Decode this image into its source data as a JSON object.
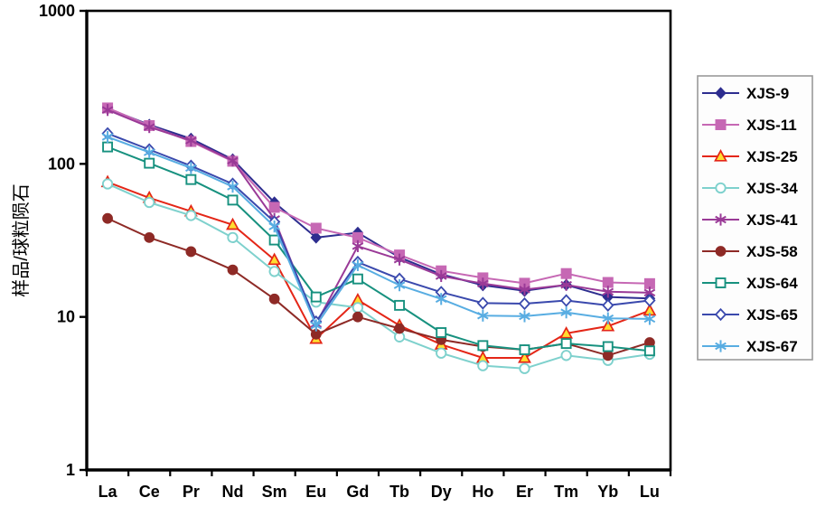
{
  "chart_data": {
    "type": "line",
    "title": "",
    "ylabel": "样品/球粒陨石",
    "xlabel": "",
    "y_scale": "log",
    "ylim": [
      1,
      1000
    ],
    "y_ticks": [
      1000,
      100,
      10,
      1
    ],
    "y_tick_labels": [
      "1000",
      "100",
      "10",
      "1"
    ],
    "grid": "off",
    "legend_position": "right-outside",
    "x_categories": [
      "La",
      "Ce",
      "Pr",
      "Nd",
      "Sm",
      "Eu",
      "Gd",
      "Tb",
      "Dy",
      "Ho",
      "Er",
      "Tm",
      "Yb",
      "Lu"
    ],
    "series": [
      {
        "name": "XJS-9",
        "color": "#2d2d8f",
        "marker": "diamond-filled",
        "values": [
          230,
          180,
          146,
          107,
          56,
          33,
          35.5,
          24.5,
          19,
          16.1,
          14.8,
          16.2,
          13.5,
          13.2
        ]
      },
      {
        "name": "XJS-11",
        "color": "#c668b4",
        "marker": "square-filled",
        "values": [
          232,
          178,
          140,
          104,
          52,
          38,
          33,
          25.4,
          20,
          18,
          16.6,
          19.2,
          16.8,
          16.5
        ]
      },
      {
        "name": "XJS-25",
        "color": "#e42617",
        "marker": "triangle-open",
        "marker_fill": "#ffdd30",
        "values": [
          76,
          60,
          49,
          40,
          23.6,
          7.2,
          12.9,
          8.8,
          6.6,
          5.4,
          5.4,
          7.8,
          8.7,
          11
        ]
      },
      {
        "name": "XJS-34",
        "color": "#7ed1cd",
        "marker": "circle-open",
        "values": [
          74,
          56,
          46,
          33,
          19.8,
          12.5,
          11.5,
          7.4,
          5.8,
          4.8,
          4.6,
          5.6,
          5.2,
          5.7
        ]
      },
      {
        "name": "XJS-41",
        "color": "#9a3a97",
        "marker": "asterisk",
        "values": [
          225,
          174,
          142,
          105,
          43.6,
          9,
          29,
          23.7,
          18.5,
          16.5,
          15.1,
          16.2,
          14.6,
          14.4
        ]
      },
      {
        "name": "XJS-58",
        "color": "#8e2a26",
        "marker": "circle-filled",
        "values": [
          44,
          33,
          26.7,
          20.3,
          13.1,
          7.7,
          10,
          8.4,
          7.1,
          6.4,
          6.1,
          6.7,
          5.6,
          6.8
        ]
      },
      {
        "name": "XJS-64",
        "color": "#17917f",
        "marker": "square-open",
        "values": [
          129,
          101,
          79,
          58,
          31.8,
          13.5,
          17.7,
          11.9,
          7.9,
          6.5,
          6.1,
          6.7,
          6.4,
          6
        ]
      },
      {
        "name": "XJS-65",
        "color": "#3a49ad",
        "marker": "diamond-open",
        "values": [
          158,
          124,
          97,
          74,
          41.8,
          9.3,
          22.8,
          17.7,
          14.5,
          12.3,
          12.2,
          12.8,
          11.9,
          12.8
        ]
      },
      {
        "name": "XJS-67",
        "color": "#58ade2",
        "marker": "asterisk",
        "values": [
          150,
          119,
          94,
          71,
          39,
          8.8,
          21.8,
          16.1,
          13.1,
          10.2,
          10.1,
          10.7,
          9.8,
          9.7
        ]
      }
    ],
    "axis_color": "#000000",
    "legend_border_color": "#9a9a9a",
    "legend_bg_color": "#fdfdfd"
  }
}
